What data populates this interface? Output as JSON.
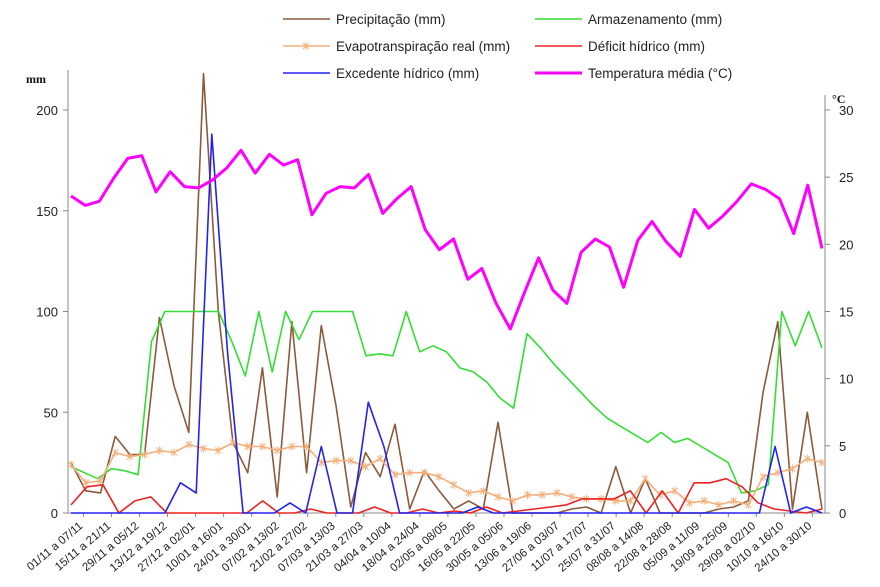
{
  "chart_data": {
    "type": "line",
    "y_left_label": "mm",
    "y_right_label": "°C",
    "y_left_ticks": [
      0,
      50,
      100,
      150,
      200
    ],
    "y_right_ticks": [
      0,
      5,
      10,
      15,
      20,
      25,
      30
    ],
    "ylim_left": [
      0,
      220
    ],
    "ylim_right": [
      0,
      30
    ],
    "x_tick_labels": [
      "01/11 a 07/11",
      "15/11 a 21/11",
      "29/11 a 05/12",
      "13/12 a 19/12",
      "27/12 a 02/01",
      "10/01 a 16/01",
      "24/01 a 30/01",
      "07/02 a 13/02",
      "21/02 a 27/02",
      "07/03 a 13/03",
      "21/03 a 27/03",
      "04/04 a 10/04",
      "18/04 a 24/04",
      "02/05 a 08/05",
      "16/05 a 22/05",
      "30/05 a 05/06",
      "13/06 a 19/06",
      "27/06 a 03/07",
      "11/07 a 17/07",
      "25/07 a 31/07",
      "08/08 a 14/08",
      "22/08 a 28/08",
      "05/09 a 11/09",
      "19/09 a 25/09",
      "29/09 a 02/10",
      "10/10 a 16/10",
      "24/10 a 30/10"
    ],
    "legend": [
      {
        "label": "Precipitação (mm)",
        "color": "#8B5A3C",
        "axis": "left"
      },
      {
        "label": "Armazenamento (mm)",
        "color": "#33DD33",
        "axis": "left"
      },
      {
        "label": "Evapotranspiração real (mm)",
        "color": "#F5B07A",
        "axis": "left",
        "marker": "asterisk"
      },
      {
        "label": "Déficit hídrico (mm)",
        "color": "#EE2222",
        "axis": "left"
      },
      {
        "label": "Excedente hídrico (mm)",
        "color": "#2222EE",
        "axis": "left"
      },
      {
        "label": "Temperatura média (°C)",
        "color": "#FF00FF",
        "axis": "right",
        "width": 3
      }
    ],
    "series": [
      {
        "name": "Precipitação (mm)",
        "values": [
          25,
          11,
          10,
          38,
          29,
          29,
          97,
          63,
          40,
          218,
          100,
          35,
          20,
          72,
          8,
          95,
          20,
          93,
          53,
          3,
          30,
          18,
          44,
          2,
          21,
          11,
          2,
          6,
          2,
          45,
          0,
          0,
          0,
          0,
          2,
          3,
          0,
          23,
          0,
          17,
          0,
          0,
          0,
          0,
          2,
          3,
          6,
          60,
          95,
          2,
          50,
          2
        ]
      },
      {
        "name": "Armazenamento (mm)",
        "values": [
          23,
          20,
          17,
          22,
          21,
          19,
          85,
          100,
          100,
          100,
          100,
          100,
          85,
          68,
          100,
          70,
          100,
          86,
          100,
          100,
          100,
          100,
          78,
          79,
          78,
          100,
          80,
          83,
          80,
          72,
          70,
          65,
          57,
          52,
          89,
          82,
          74,
          67,
          60,
          53,
          47,
          43,
          39,
          35,
          40,
          35,
          37,
          33,
          29,
          25,
          10,
          11,
          14,
          100,
          83,
          100,
          82
        ]
      },
      {
        "name": "Evapotranspiração real (mm)",
        "values": [
          24,
          15,
          16,
          30,
          28,
          29,
          31,
          30,
          34,
          32,
          31,
          35,
          33,
          33,
          31,
          33,
          33,
          25,
          26,
          26,
          23,
          27,
          19,
          20,
          20,
          18,
          14,
          10,
          11,
          8,
          6,
          9,
          9,
          10,
          8,
          7,
          7,
          6,
          6,
          17,
          9,
          11,
          5,
          6,
          4,
          6,
          4,
          18,
          20,
          22,
          27,
          25
        ]
      },
      {
        "name": "Déficit hídrico (mm)",
        "values": [
          4,
          13,
          14,
          0,
          6,
          8,
          0,
          0,
          0,
          0,
          0,
          0,
          6,
          0,
          0,
          2,
          0,
          0,
          0,
          3,
          0,
          0,
          2,
          0,
          1,
          0,
          3,
          0,
          1,
          2,
          3,
          4,
          7,
          7,
          7,
          11,
          0,
          11,
          0,
          15,
          15,
          17,
          13,
          5,
          2,
          1,
          0,
          2
        ]
      },
      {
        "name": "Excedente hídrico (mm)",
        "values": [
          0,
          0,
          0,
          0,
          0,
          0,
          0,
          15,
          10,
          188,
          80,
          0,
          0,
          0,
          5,
          0,
          33,
          0,
          0,
          55,
          33,
          0,
          0,
          0,
          0,
          0,
          3,
          0,
          0,
          0,
          0,
          0,
          0,
          0,
          0,
          0,
          0,
          0,
          0,
          0,
          0,
          0,
          0,
          0,
          0,
          33,
          0,
          3,
          0
        ]
      },
      {
        "name": "Temperatura média (°C)",
        "values": [
          23.6,
          22.9,
          23.2,
          24.9,
          26.4,
          26.6,
          23.9,
          25.4,
          24.3,
          24.2,
          24.8,
          25.7,
          27.0,
          25.3,
          26.7,
          25.9,
          26.3,
          22.2,
          23.8,
          24.3,
          24.2,
          25.2,
          22.3,
          23.4,
          24.3,
          21.1,
          19.6,
          20.4,
          17.4,
          18.2,
          15.6,
          13.7,
          16.4,
          19.0,
          16.6,
          15.6,
          19.4,
          20.4,
          19.8,
          16.8,
          20.3,
          21.7,
          20.2,
          19.1,
          22.6,
          21.2,
          22.1,
          23.2,
          24.5,
          24.1,
          23.4,
          20.8,
          24.4,
          19.7
        ]
      }
    ]
  }
}
